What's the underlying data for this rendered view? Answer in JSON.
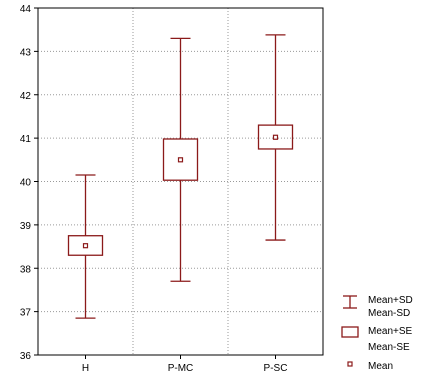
{
  "chart_data": {
    "type": "box",
    "categories": [
      "H",
      "P-MC",
      "P-SC"
    ],
    "series": [
      {
        "category": "H",
        "mean": 38.52,
        "se_low": 38.3,
        "se_high": 38.75,
        "sd_low": 36.85,
        "sd_high": 40.15
      },
      {
        "category": "P-MC",
        "mean": 40.5,
        "se_low": 40.03,
        "se_high": 40.98,
        "sd_low": 37.7,
        "sd_high": 43.3
      },
      {
        "category": "P-SC",
        "mean": 41.02,
        "se_low": 40.75,
        "se_high": 41.3,
        "sd_low": 38.65,
        "sd_high": 43.38
      }
    ],
    "ylim": [
      36,
      44
    ],
    "yticks": [
      36,
      37,
      38,
      39,
      40,
      41,
      42,
      43,
      44
    ],
    "grid": true,
    "legend": {
      "placement": "right",
      "items": [
        {
          "symbol": "whisker",
          "labels": [
            "Mean+SD",
            "Mean-SD"
          ]
        },
        {
          "symbol": "box",
          "labels": [
            "Mean+SE",
            "Mean-SE"
          ]
        },
        {
          "symbol": "point",
          "labels": [
            "Mean"
          ]
        }
      ]
    },
    "colors": {
      "series": "#8b1a1a",
      "grid": "#9a9a9a",
      "axis": "#000000"
    }
  }
}
